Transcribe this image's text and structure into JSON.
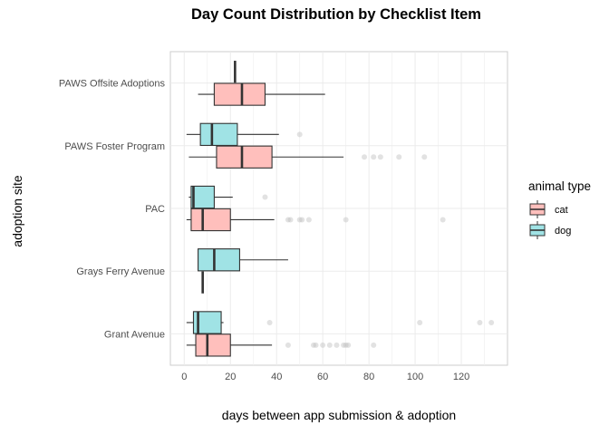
{
  "chart_data": {
    "type": "boxplot",
    "orientation": "horizontal",
    "title": "Day Count Distribution by Checklist Item",
    "xlabel": "days between app submission & adoption",
    "ylabel": "adoption site",
    "xlim": [
      -6,
      140
    ],
    "xticks": [
      0,
      20,
      40,
      60,
      80,
      100,
      120
    ],
    "grid": true,
    "legend": {
      "title": "animal type",
      "position": "right",
      "entries": [
        {
          "name": "cat",
          "color": "#F8766D"
        },
        {
          "name": "dog",
          "color": "#00BFC4"
        }
      ]
    },
    "categories": [
      "Grant Avenue",
      "Grays Ferry Avenue",
      "PAC",
      "PAWS Foster Program",
      "PAWS Offsite Adoptions"
    ],
    "series": [
      {
        "name": "cat",
        "color": "#F8766D",
        "boxes": [
          {
            "category": "Grant Avenue",
            "whisker_low": 1,
            "q1": 5,
            "median": 10,
            "q3": 20,
            "whisker_high": 38,
            "outliers": [
              45,
              56,
              57,
              60,
              63,
              66,
              69,
              70,
              71,
              82
            ]
          },
          {
            "category": "Grays Ferry Avenue",
            "whisker_low": 8,
            "q1": 8,
            "median": 8,
            "q3": 8,
            "whisker_high": 8,
            "outliers": []
          },
          {
            "category": "PAC",
            "whisker_low": 1,
            "q1": 3,
            "median": 8,
            "q3": 20,
            "whisker_high": 39,
            "outliers": [
              45,
              46,
              50,
              51,
              54,
              70,
              112
            ]
          },
          {
            "category": "PAWS Foster Program",
            "whisker_low": 2,
            "q1": 14,
            "median": 25,
            "q3": 38,
            "whisker_high": 69,
            "outliers": [
              78,
              82,
              85,
              93,
              104
            ]
          },
          {
            "category": "PAWS Offsite Adoptions",
            "whisker_low": 6,
            "q1": 13,
            "median": 25,
            "q3": 35,
            "whisker_high": 61,
            "outliers": []
          }
        ]
      },
      {
        "name": "dog",
        "color": "#00BFC4",
        "boxes": [
          {
            "category": "Grant Avenue",
            "whisker_low": 1,
            "q1": 4,
            "median": 6,
            "q3": 16,
            "whisker_high": 17,
            "outliers": [
              37,
              102,
              128,
              133
            ]
          },
          {
            "category": "Grays Ferry Avenue",
            "whisker_low": 6,
            "q1": 6,
            "median": 13,
            "q3": 24,
            "whisker_high": 45,
            "outliers": []
          },
          {
            "category": "PAC",
            "whisker_low": 2,
            "q1": 3,
            "median": 4,
            "q3": 13,
            "whisker_high": 21,
            "outliers": [
              35
            ]
          },
          {
            "category": "PAWS Foster Program",
            "whisker_low": 1,
            "q1": 7,
            "median": 12,
            "q3": 23,
            "whisker_high": 41,
            "outliers": [
              50
            ]
          },
          {
            "category": "PAWS Offsite Adoptions",
            "whisker_low": 22,
            "q1": 22,
            "median": 22,
            "q3": 22,
            "whisker_high": 22,
            "outliers": []
          }
        ]
      }
    ]
  }
}
